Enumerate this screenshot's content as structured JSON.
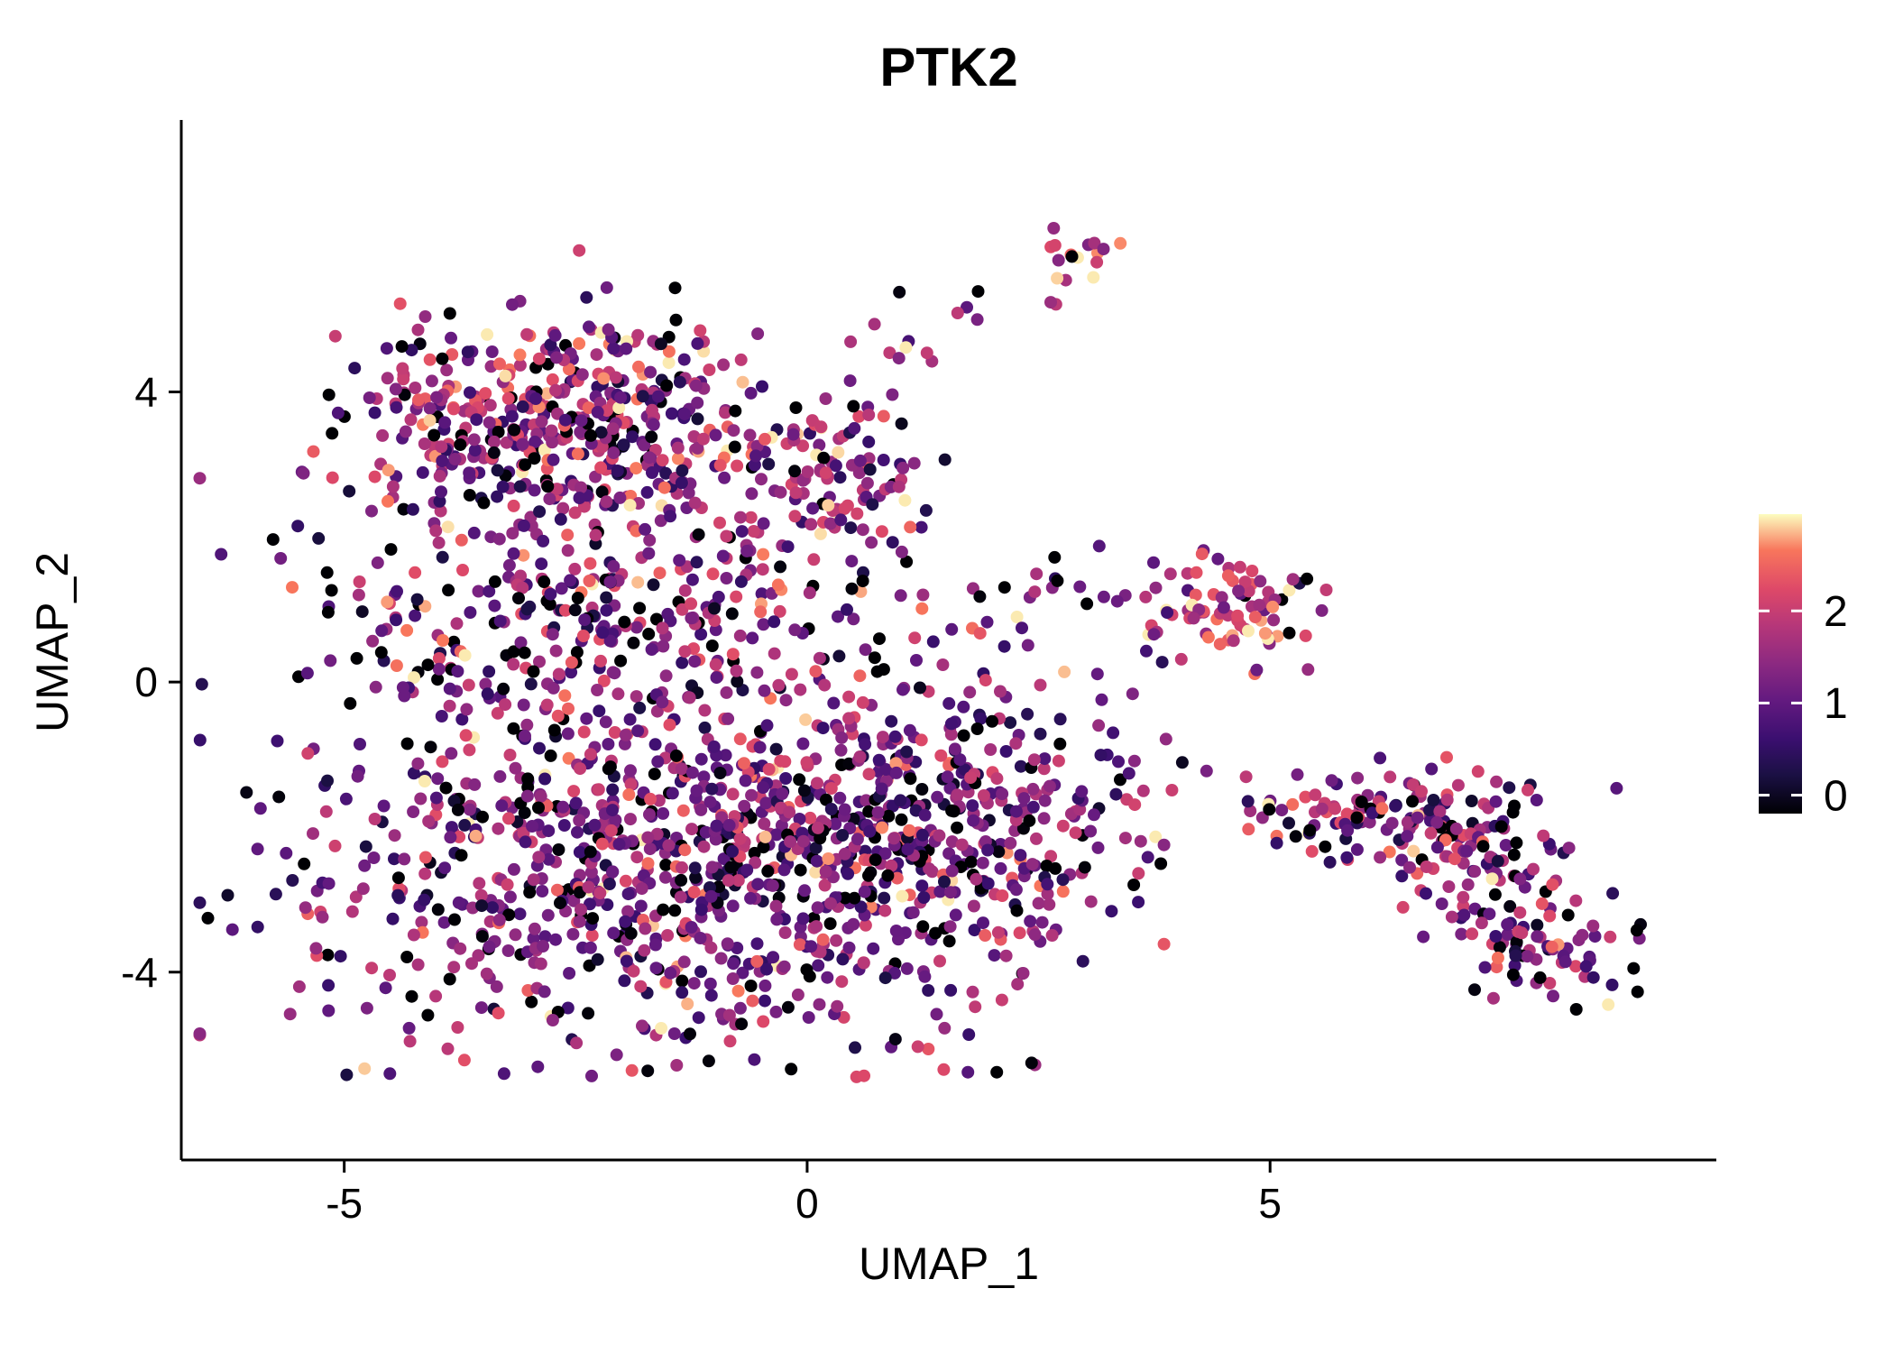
{
  "chart_data": {
    "type": "scatter",
    "title": "PTK2",
    "xlabel": "UMAP_1",
    "ylabel": "UMAP_2",
    "x_ticks": [
      -5,
      0,
      5
    ],
    "y_ticks": [
      4,
      0,
      -4
    ],
    "xlim": [
      -6.76,
      9.82
    ],
    "ylim": [
      -6.59,
      7.75
    ],
    "grid": false,
    "legend_position": "right",
    "point_radius_px": 7,
    "seed": 1337,
    "color_value_range": [
      0,
      3
    ],
    "colormap": {
      "name": "magma",
      "stops": [
        [
          0,
          "#000004"
        ],
        [
          0.13,
          "#1B1044"
        ],
        [
          0.25,
          "#3B0F70"
        ],
        [
          0.38,
          "#641A80"
        ],
        [
          0.5,
          "#8C2981"
        ],
        [
          0.63,
          "#B73779"
        ],
        [
          0.75,
          "#DE4968"
        ],
        [
          0.88,
          "#F8765C"
        ],
        [
          1,
          "#FCFDBF"
        ]
      ]
    },
    "colorbar": {
      "ticks": [
        2,
        1,
        0
      ],
      "vmin": -0.2,
      "vmax": 3.05,
      "tick_color": "#FFFFFF"
    },
    "clusters": [
      {
        "name": "upper-left-main",
        "cx": -2.7,
        "cy": 3.55,
        "sx": 1.05,
        "sy": 0.75,
        "n": 500,
        "vmean": 1.5,
        "vsd": 0.72,
        "p0": 0.09
      },
      {
        "name": "upper-right-lobe",
        "cx": 0.2,
        "cy": 2.8,
        "sx": 0.55,
        "sy": 0.75,
        "n": 130,
        "vmean": 1.5,
        "vsd": 0.7,
        "p0": 0.08
      },
      {
        "name": "mid-band",
        "cx": -2.3,
        "cy": 0.9,
        "sx": 1.5,
        "sy": 0.75,
        "n": 260,
        "vmean": 1.4,
        "vsd": 0.72,
        "p0": 0.11
      },
      {
        "name": "main-blob",
        "cx": -1.3,
        "cy": -2.4,
        "sx": 2.0,
        "sy": 1.35,
        "n": 1050,
        "vmean": 1.35,
        "vsd": 0.72,
        "p0": 0.12,
        "ymin": -5.45
      },
      {
        "name": "main-blob-right",
        "cx": 1.4,
        "cy": -1.9,
        "sx": 0.95,
        "sy": 0.95,
        "n": 260,
        "vmean": 1.3,
        "vsd": 0.7,
        "p0": 0.12
      },
      {
        "name": "top-small",
        "cx": 2.95,
        "cy": 5.95,
        "sx": 0.2,
        "sy": 0.18,
        "n": 16,
        "vmean": 1.9,
        "vsd": 0.8,
        "p0": 0.06
      },
      {
        "name": "trail-a",
        "cx": 0.9,
        "cy": 4.85,
        "sx": 0.45,
        "sy": 0.3,
        "n": 9,
        "vmean": 1.6,
        "vsd": 0.7,
        "p0": 0.1
      },
      {
        "name": "trail-b",
        "cx": 2.1,
        "cy": 5.3,
        "sx": 0.3,
        "sy": 0.2,
        "n": 5,
        "vmean": 1.7,
        "vsd": 0.7,
        "p0": 0.1
      },
      {
        "name": "right-mid",
        "cx": 4.6,
        "cy": 1.0,
        "sx": 0.42,
        "sy": 0.34,
        "n": 75,
        "vmean": 1.9,
        "vsd": 0.6,
        "p0": 0.05
      },
      {
        "name": "connector-upper",
        "cx": 2.9,
        "cy": 1.0,
        "sx": 0.75,
        "sy": 0.4,
        "n": 32,
        "vmean": 1.4,
        "vsd": 0.7,
        "p0": 0.12
      },
      {
        "name": "connector-lower",
        "cx": 3.5,
        "cy": -1.4,
        "sx": 0.55,
        "sy": 0.45,
        "n": 12,
        "vmean": 1.3,
        "vsd": 0.7,
        "p0": 0.15
      },
      {
        "name": "far-right-a",
        "cx": 6.3,
        "cy": -1.85,
        "sx": 0.55,
        "sy": 0.28,
        "n": 95,
        "vmean": 1.45,
        "vsd": 0.7,
        "p0": 0.1
      },
      {
        "name": "far-right-b",
        "cx": 7.3,
        "cy": -2.5,
        "sx": 0.5,
        "sy": 0.5,
        "n": 95,
        "vmean": 1.45,
        "vsd": 0.7,
        "p0": 0.1
      },
      {
        "name": "far-right-c",
        "cx": 8.0,
        "cy": -3.75,
        "sx": 0.45,
        "sy": 0.33,
        "n": 70,
        "vmean": 1.5,
        "vsd": 0.7,
        "p0": 0.08
      },
      {
        "name": "far-right-conn",
        "cx": 5.2,
        "cy": -1.75,
        "sx": 0.45,
        "sy": 0.15,
        "n": 14,
        "vmean": 1.4,
        "vsd": 0.7,
        "p0": 0.1
      }
    ]
  }
}
